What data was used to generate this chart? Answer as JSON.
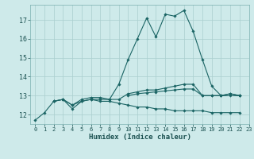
{
  "title": "",
  "xlabel": "Humidex (Indice chaleur)",
  "xlim": [
    -0.5,
    23
  ],
  "ylim": [
    11.5,
    17.8
  ],
  "background_color": "#ceeaea",
  "grid_color": "#aacece",
  "line_color": "#1a6464",
  "xticks": [
    0,
    1,
    2,
    3,
    4,
    5,
    6,
    7,
    8,
    9,
    10,
    11,
    12,
    13,
    14,
    15,
    16,
    17,
    18,
    19,
    20,
    21,
    22,
    23
  ],
  "yticks": [
    12,
    13,
    14,
    15,
    16,
    17
  ],
  "series": [
    [
      11.7,
      12.1,
      12.7,
      12.8,
      12.3,
      12.7,
      12.8,
      12.8,
      12.8,
      13.6,
      14.9,
      16.0,
      17.1,
      16.1,
      17.3,
      17.2,
      17.5,
      16.4,
      14.9,
      13.5,
      13.0,
      13.1,
      13.0,
      null
    ],
    [
      null,
      null,
      12.7,
      12.8,
      12.5,
      12.8,
      12.9,
      12.9,
      12.8,
      12.8,
      13.1,
      13.2,
      13.3,
      13.3,
      13.4,
      13.5,
      13.6,
      13.6,
      13.0,
      13.0,
      13.0,
      13.1,
      13.0,
      null
    ],
    [
      null,
      null,
      12.7,
      12.8,
      12.5,
      12.7,
      12.8,
      12.7,
      12.7,
      12.6,
      12.5,
      12.4,
      12.4,
      12.3,
      12.3,
      12.2,
      12.2,
      12.2,
      12.2,
      12.1,
      12.1,
      12.1,
      12.1,
      null
    ],
    [
      null,
      null,
      null,
      null,
      null,
      null,
      null,
      null,
      null,
      null,
      13.0,
      13.1,
      13.15,
      13.2,
      13.25,
      13.3,
      13.35,
      13.35,
      13.0,
      13.0,
      13.0,
      13.0,
      13.0,
      null
    ]
  ]
}
